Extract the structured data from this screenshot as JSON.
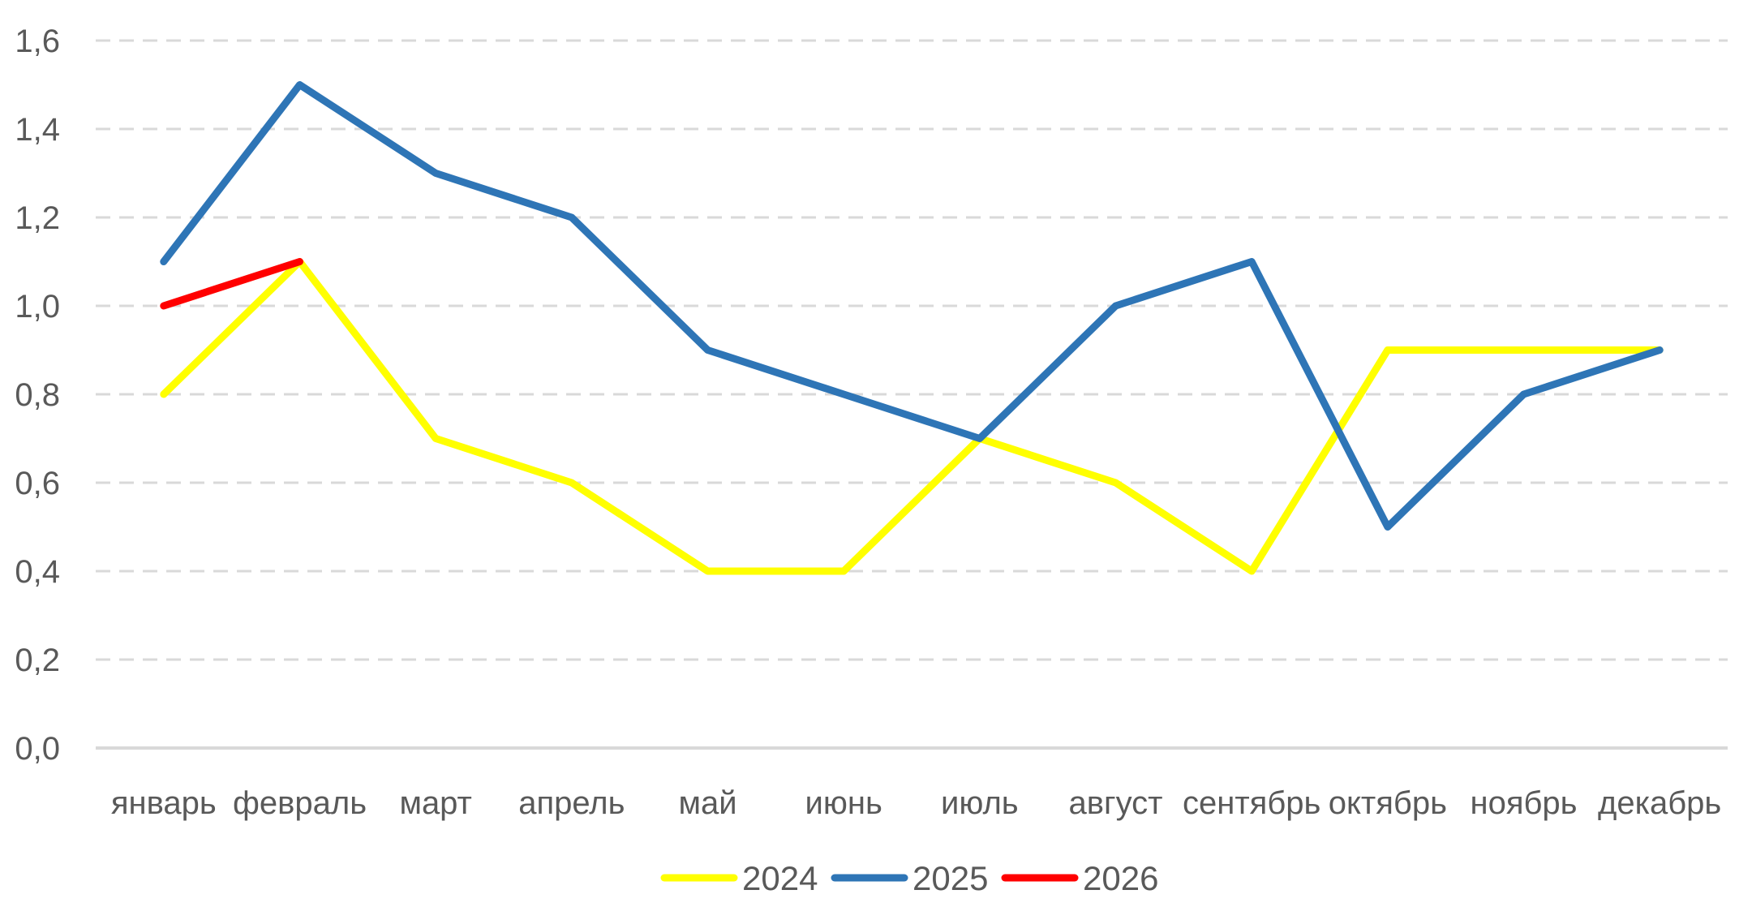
{
  "chart_data": {
    "type": "line",
    "title": "",
    "xlabel": "",
    "ylabel": "",
    "categories": [
      "январь",
      "февраль",
      "март",
      "апрель",
      "май",
      "июнь",
      "июль",
      "август",
      "сентябрь",
      "октябрь",
      "ноябрь",
      "декабрь"
    ],
    "y_ticks": [
      "0,0",
      "0,2",
      "0,4",
      "0,6",
      "0,8",
      "1,0",
      "1,2",
      "1,4",
      "1,6"
    ],
    "ylim": [
      0,
      1.6
    ],
    "grid": true,
    "legend_position": "bottom",
    "series": [
      {
        "name": "2024",
        "color": "#ffff00",
        "values": [
          0.8,
          1.1,
          0.7,
          0.6,
          0.4,
          0.4,
          0.7,
          0.6,
          0.4,
          0.9,
          0.9,
          0.9
        ]
      },
      {
        "name": "2025",
        "color": "#2e75b6",
        "values": [
          1.1,
          1.5,
          1.3,
          1.2,
          0.9,
          0.8,
          0.7,
          1.0,
          1.1,
          0.5,
          0.8,
          0.9
        ]
      },
      {
        "name": "2026",
        "color": "#ff0000",
        "values": [
          1.0,
          1.1,
          null,
          null,
          null,
          null,
          null,
          null,
          null,
          null,
          null,
          null
        ]
      }
    ]
  }
}
